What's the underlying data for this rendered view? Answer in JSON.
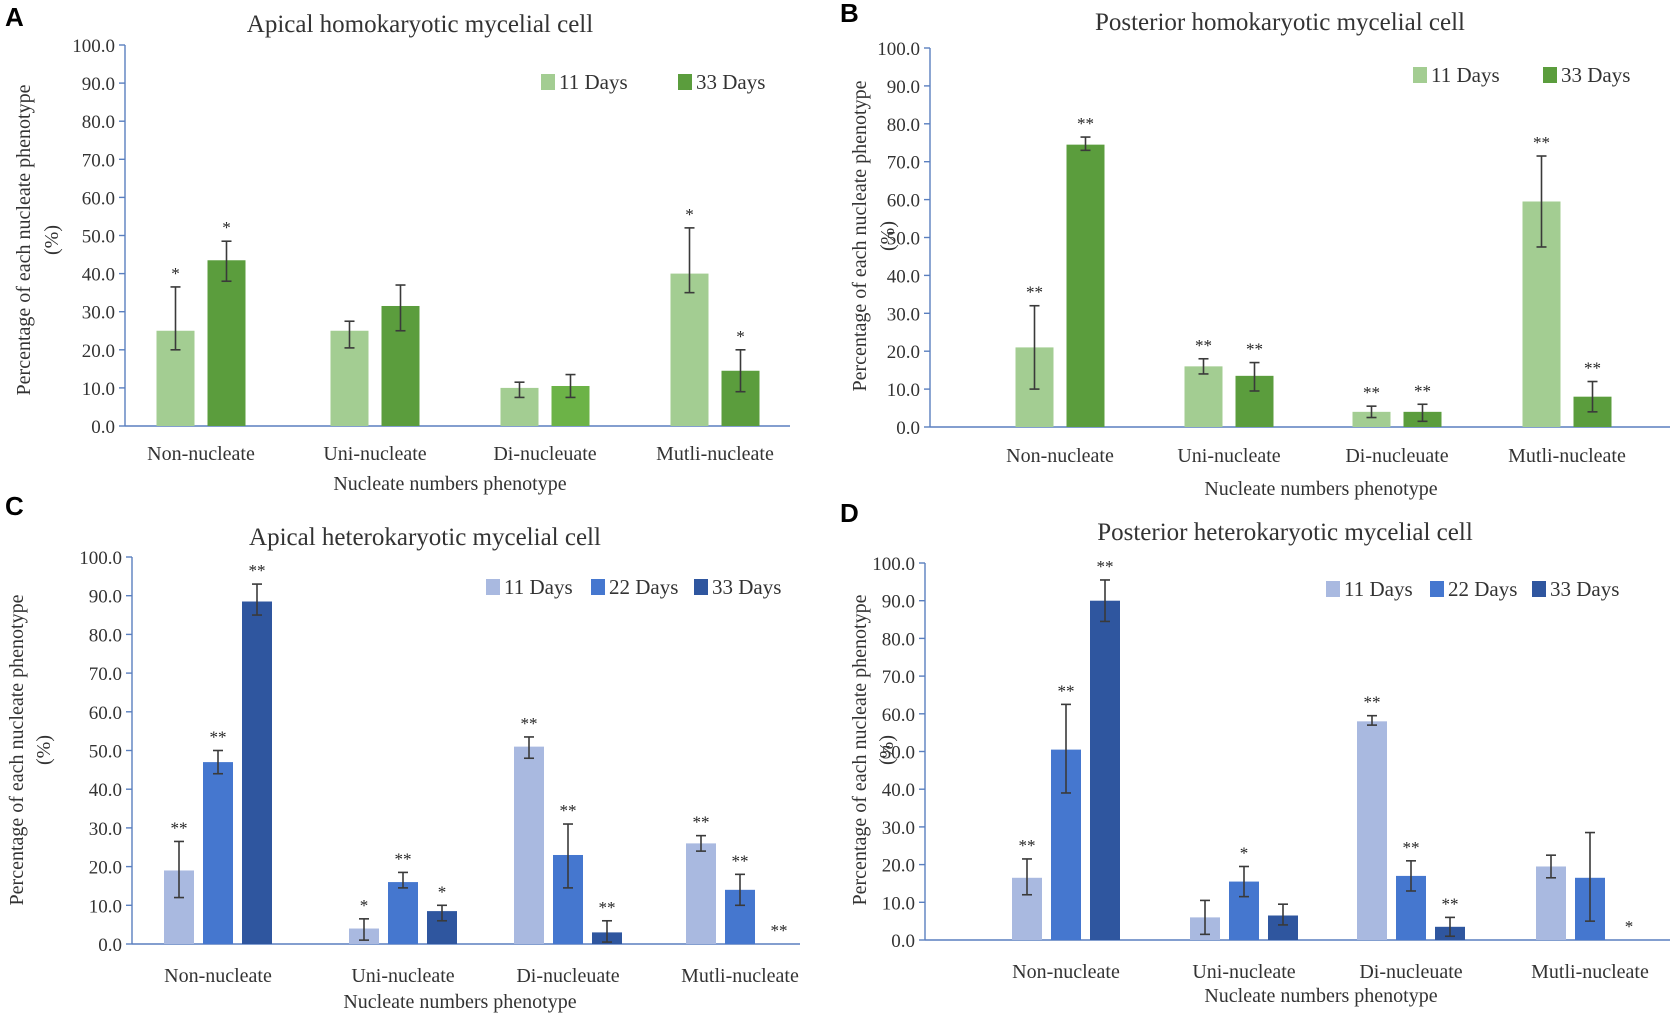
{
  "colors": {
    "green_light": "#a3cd92",
    "green_dark": "#5b9d3d",
    "green_mid": "#6cb347",
    "blue_light": "#a9b9e0",
    "blue_mid": "#4577cf",
    "blue_dark": "#2f569f",
    "axis": "#5a7fbf",
    "error_bar": "#3a3a3a"
  },
  "chart_data": [
    {
      "panel": "A",
      "type": "bar",
      "title": "Apical homokaryotic mycelial  cell",
      "xlabel": "Nucleate numbers phenotype",
      "ylabel_line1": "Percentage  of each nucleate phenotype",
      "ylabel_line2": "(%)",
      "ylim": [
        0,
        100
      ],
      "yticks": [
        "0.0",
        "10.0",
        "20.0",
        "30.0",
        "40.0",
        "50.0",
        "60.0",
        "70.0",
        "80.0",
        "90.0",
        "100.0"
      ],
      "categories": [
        "Non-nucleate",
        "Uni-nucleate",
        "Di-nucleuate",
        "Mutli-nucleate"
      ],
      "series": [
        {
          "name": "11 Days",
          "color_key": "green_light",
          "values": [
            25,
            25,
            10,
            40
          ],
          "error_low": [
            20,
            20.5,
            7.5,
            35
          ],
          "error_high": [
            36.5,
            27.5,
            11.5,
            52
          ],
          "significance": [
            "*",
            "",
            "",
            "*"
          ]
        },
        {
          "name": "33 Days",
          "color_key": "green_dark",
          "values": [
            43.5,
            31.5,
            10.5,
            14.5
          ],
          "error_low": [
            38,
            25,
            7.5,
            9
          ],
          "error_high": [
            48.5,
            37,
            13.5,
            20
          ],
          "significance": [
            "*",
            "",
            "",
            "*"
          ]
        }
      ],
      "bar_color_overrides": [
        {
          "series": 1,
          "category": 2,
          "color_key": "green_mid"
        }
      ]
    },
    {
      "panel": "B",
      "type": "bar",
      "title": "Posterior homokaryotic mycelial cell",
      "xlabel": "Nucleate numbers phenotype",
      "ylabel_line1": "Percentage  of each nucleate phenotype",
      "ylabel_line2": "(%)",
      "ylim": [
        0,
        100
      ],
      "yticks": [
        "0.0",
        "10.0",
        "20.0",
        "30.0",
        "40.0",
        "50.0",
        "60.0",
        "70.0",
        "80.0",
        "90.0",
        "100.0"
      ],
      "categories": [
        "Non-nucleate",
        "Uni-nucleate",
        "Di-nucleuate",
        "Mutli-nucleate"
      ],
      "series": [
        {
          "name": "11 Days",
          "color_key": "green_light",
          "values": [
            21,
            16,
            4,
            59.5
          ],
          "error_low": [
            10,
            14,
            2.5,
            47.5
          ],
          "error_high": [
            32,
            18,
            5.5,
            71.5
          ],
          "significance": [
            "**",
            "**",
            "**",
            "**"
          ]
        },
        {
          "name": "33 Days",
          "color_key": "green_dark",
          "values": [
            74.5,
            13.5,
            4,
            8
          ],
          "error_low": [
            73,
            9.5,
            1.5,
            4
          ],
          "error_high": [
            76.5,
            17,
            6,
            12
          ],
          "significance": [
            "**",
            "**",
            "**",
            "**"
          ]
        }
      ]
    },
    {
      "panel": "C",
      "type": "bar",
      "title": "Apical heterokaryotic  mycelial  cell",
      "xlabel": "Nucleate numbers phenotype",
      "ylabel_line1": "Percentage  of each nucleate phenotype",
      "ylabel_line2": "(%)",
      "ylim": [
        0,
        100
      ],
      "yticks": [
        "0.0",
        "10.0",
        "20.0",
        "30.0",
        "40.0",
        "50.0",
        "60.0",
        "70.0",
        "80.0",
        "90.0",
        "100.0"
      ],
      "categories": [
        "Non-nucleate",
        "Uni-nucleate",
        "Di-nucleuate",
        "Mutli-nucleate"
      ],
      "series": [
        {
          "name": "11 Days",
          "color_key": "blue_light",
          "values": [
            19,
            4,
            51,
            26
          ],
          "error_low": [
            12,
            1,
            48,
            24
          ],
          "error_high": [
            26.5,
            6.5,
            53.5,
            28
          ],
          "significance": [
            "**",
            "*",
            "**",
            "**"
          ]
        },
        {
          "name": "22 Days",
          "color_key": "blue_mid",
          "values": [
            47,
            16,
            23,
            14
          ],
          "error_low": [
            44,
            14.5,
            14.5,
            10
          ],
          "error_high": [
            50,
            18.5,
            31,
            18
          ],
          "significance": [
            "**",
            "**",
            "**",
            "**"
          ]
        },
        {
          "name": "33 Days",
          "color_key": "blue_dark",
          "values": [
            88.5,
            8.5,
            3,
            0
          ],
          "error_low": [
            85,
            6,
            0.5,
            0
          ],
          "error_high": [
            93,
            10,
            6,
            0
          ],
          "significance": [
            "**",
            "*",
            "**",
            "**"
          ]
        }
      ]
    },
    {
      "panel": "D",
      "type": "bar",
      "title": "Posterior heterokaryotic mycelial cell",
      "xlabel": "Nucleate numbers phenotype",
      "ylabel_line1": "Percentage  of each nucleate phenotype",
      "ylabel_line2": "(%)",
      "ylim": [
        0,
        100
      ],
      "yticks": [
        "0.0",
        "10.0",
        "20.0",
        "30.0",
        "40.0",
        "50.0",
        "60.0",
        "70.0",
        "80.0",
        "90.0",
        "100.0"
      ],
      "categories": [
        "Non-nucleate",
        "Uni-nucleate",
        "Di-nucleuate",
        "Mutli-nucleate"
      ],
      "series": [
        {
          "name": "11 Days",
          "color_key": "blue_light",
          "values": [
            16.5,
            6,
            58,
            19.5
          ],
          "error_low": [
            12,
            1.5,
            57,
            16.5
          ],
          "error_high": [
            21.5,
            10.5,
            59.5,
            22.5
          ],
          "significance": [
            "**",
            "",
            "**",
            ""
          ]
        },
        {
          "name": "22 Days",
          "color_key": "blue_mid",
          "values": [
            50.5,
            15.5,
            17,
            16.5
          ],
          "error_low": [
            39,
            11.5,
            13,
            5
          ],
          "error_high": [
            62.5,
            19.5,
            21,
            28.5
          ],
          "significance": [
            "**",
            "*",
            "**",
            ""
          ]
        },
        {
          "name": "33 Days",
          "color_key": "blue_dark",
          "values": [
            90,
            6.5,
            3.5,
            0
          ],
          "error_low": [
            84.5,
            4,
            1,
            0
          ],
          "error_high": [
            95.5,
            9.5,
            6,
            0
          ],
          "significance": [
            "**",
            "",
            "**",
            "*"
          ]
        }
      ]
    }
  ]
}
